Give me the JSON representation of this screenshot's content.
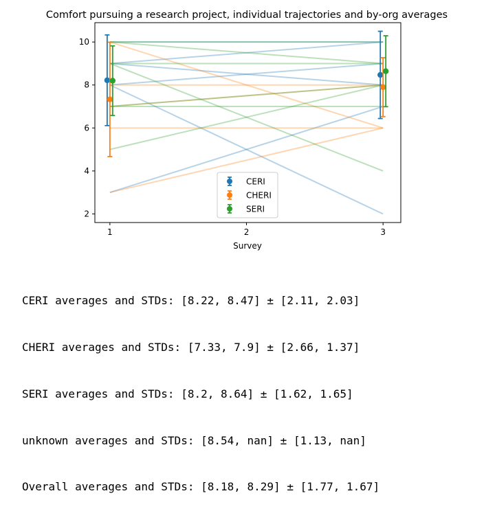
{
  "chart_data": {
    "type": "line",
    "title": "Comfort pursuing a research project, individual trajectories and by-org averages",
    "xlabel": "Survey",
    "ylabel": "",
    "x_ticks": [
      1,
      2,
      3
    ],
    "y_ticks": [
      2,
      4,
      6,
      8,
      10
    ],
    "xlim": [
      0.89,
      3.13
    ],
    "ylim": [
      1.6,
      10.9
    ],
    "grid": false,
    "legend_position": "lower-center",
    "colors": {
      "CERI": "#1f77b4",
      "CHERI": "#ff7f0e",
      "SERI": "#2ca02c"
    },
    "series": [
      {
        "name": "CERI",
        "x": [
          1,
          3
        ],
        "mean": [
          8.22,
          8.47
        ],
        "std": [
          2.11,
          2.03
        ]
      },
      {
        "name": "CHERI",
        "x": [
          1,
          3
        ],
        "mean": [
          7.33,
          7.9
        ],
        "std": [
          2.66,
          1.37
        ]
      },
      {
        "name": "SERI",
        "x": [
          1,
          3
        ],
        "mean": [
          8.2,
          8.64
        ],
        "std": [
          1.62,
          1.65
        ]
      }
    ],
    "trajectories": [
      {
        "org": "CERI",
        "x": [
          1,
          3
        ],
        "y": [
          9,
          10
        ]
      },
      {
        "org": "CERI",
        "x": [
          1,
          3
        ],
        "y": [
          8,
          9
        ]
      },
      {
        "org": "CERI",
        "x": [
          1,
          3
        ],
        "y": [
          10,
          10
        ]
      },
      {
        "org": "CERI",
        "x": [
          1,
          3
        ],
        "y": [
          9,
          8
        ]
      },
      {
        "org": "CERI",
        "x": [
          1,
          3
        ],
        "y": [
          8,
          2
        ]
      },
      {
        "org": "CERI",
        "x": [
          1,
          3
        ],
        "y": [
          3,
          7
        ]
      },
      {
        "org": "CHERI",
        "x": [
          1,
          3
        ],
        "y": [
          10,
          6
        ]
      },
      {
        "org": "CHERI",
        "x": [
          1,
          3
        ],
        "y": [
          8,
          8
        ]
      },
      {
        "org": "CHERI",
        "x": [
          1,
          3
        ],
        "y": [
          6,
          6
        ]
      },
      {
        "org": "CHERI",
        "x": [
          1,
          3
        ],
        "y": [
          3,
          6
        ]
      },
      {
        "org": "CHERI",
        "x": [
          1,
          3
        ],
        "y": [
          7,
          8
        ]
      },
      {
        "org": "SERI",
        "x": [
          1,
          3
        ],
        "y": [
          10,
          9
        ]
      },
      {
        "org": "SERI",
        "x": [
          1,
          3
        ],
        "y": [
          9,
          9
        ]
      },
      {
        "org": "SERI",
        "x": [
          1,
          3
        ],
        "y": [
          9,
          4
        ]
      },
      {
        "org": "SERI",
        "x": [
          1,
          3
        ],
        "y": [
          7,
          8
        ]
      },
      {
        "org": "SERI",
        "x": [
          1,
          3
        ],
        "y": [
          7,
          7
        ]
      },
      {
        "org": "SERI",
        "x": [
          1,
          3
        ],
        "y": [
          5,
          8
        ]
      },
      {
        "org": "SERI",
        "x": [
          1,
          3
        ],
        "y": [
          10,
          10
        ]
      }
    ]
  },
  "output_lines": [
    "CERI averages and STDs: [8.22, 8.47] ± [2.11, 2.03]",
    "CHERI averages and STDs: [7.33, 7.9] ± [2.66, 1.37]",
    "SERI averages and STDs: [8.2, 8.64] ± [1.62, 1.65]",
    "unknown averages and STDs: [8.54, nan] ± [1.13, nan]",
    "Overall averages and STDs: [8.18, 8.29] ± [1.77, 1.67]"
  ]
}
